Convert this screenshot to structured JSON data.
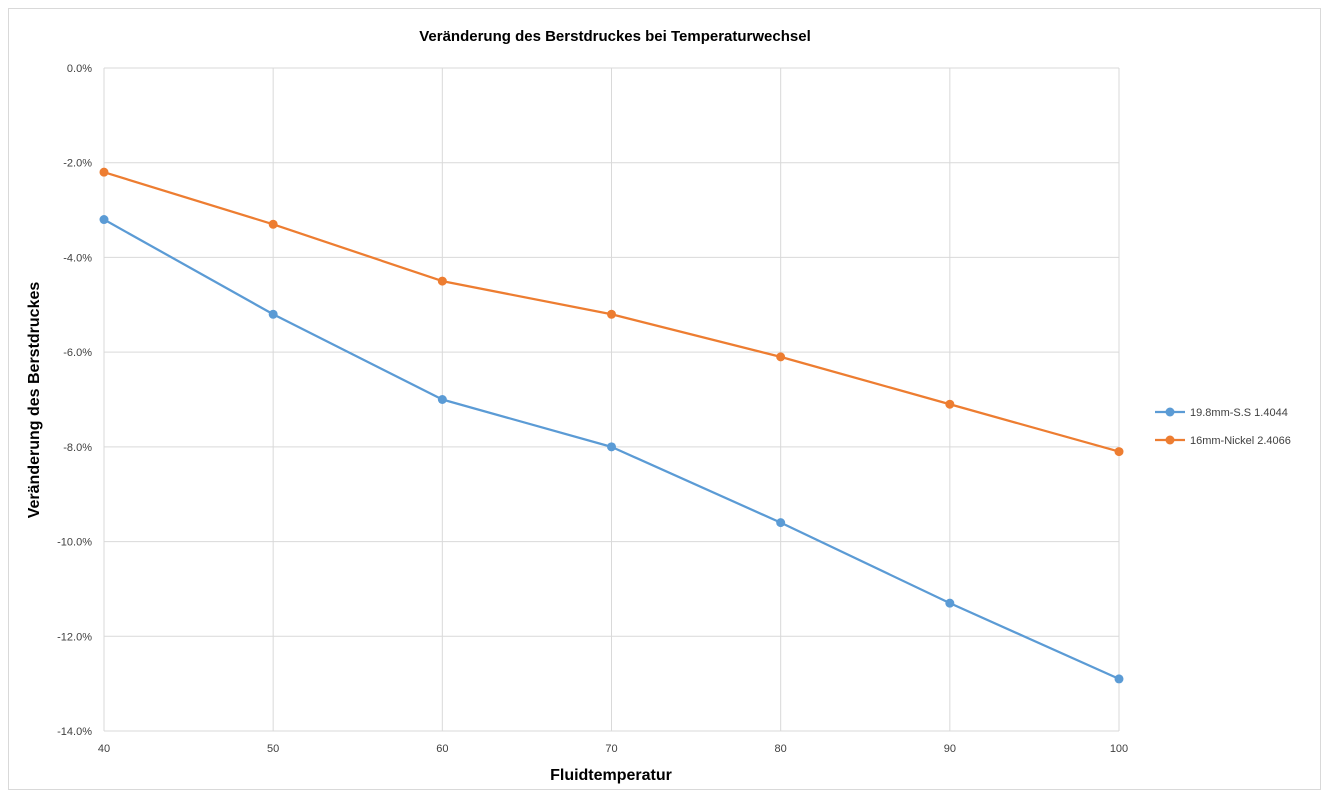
{
  "chart_data": {
    "type": "line",
    "title": "Veränderung des Berstdruckes bei Temperaturwechsel",
    "xlabel": "Fluidtemperatur",
    "ylabel": "Veränderung des Berstdruckes",
    "x": [
      40,
      50,
      60,
      70,
      80,
      90,
      100
    ],
    "x_tick_labels": [
      "40",
      "50",
      "60",
      "70",
      "80",
      "90",
      "100"
    ],
    "xlim": [
      40,
      100
    ],
    "ylim": [
      -14.0,
      0.0
    ],
    "y_ticks": [
      0.0,
      -2.0,
      -4.0,
      -6.0,
      -8.0,
      -10.0,
      -12.0,
      -14.0
    ],
    "y_tick_labels": [
      "0.0%",
      "-2.0%",
      "-4.0%",
      "-6.0%",
      "-8.0%",
      "-10.0%",
      "-12.0%",
      "-14.0%"
    ],
    "grid": true,
    "legend_position": "right",
    "series": [
      {
        "name": "19.8mm-S.S 1.4044",
        "color": "#5b9bd5",
        "values": [
          -3.2,
          -5.2,
          -7.0,
          -8.0,
          -9.6,
          -11.3,
          -12.9
        ]
      },
      {
        "name": "16mm-Nickel 2.4066",
        "color": "#ed7d31",
        "values": [
          -2.2,
          -3.3,
          -4.5,
          -5.2,
          -6.1,
          -7.1,
          -8.1
        ]
      }
    ]
  }
}
